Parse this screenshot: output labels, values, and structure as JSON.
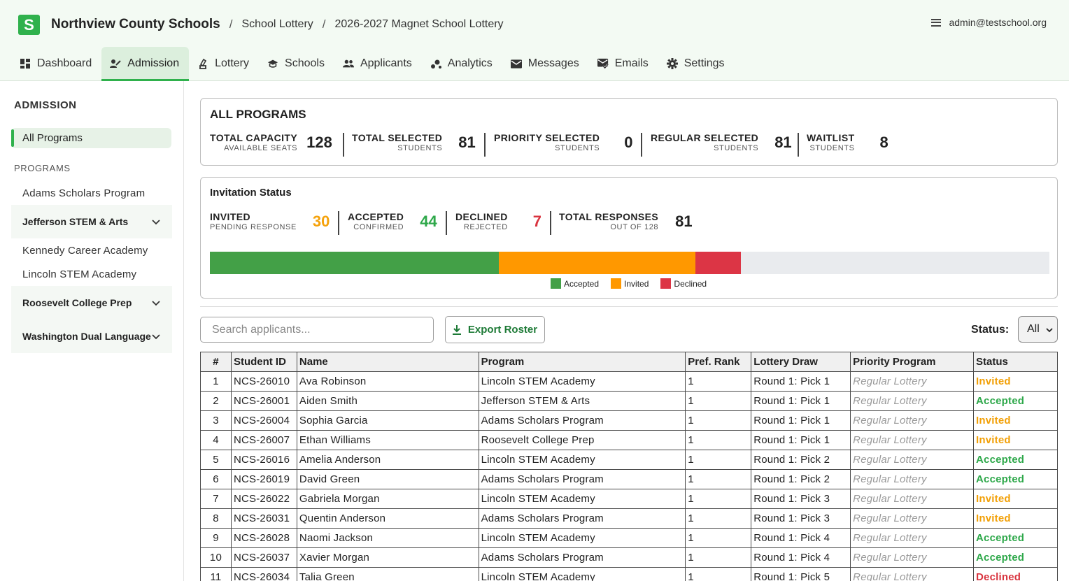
{
  "app": {
    "logo_letter": "S",
    "org_name": "Northview County Schools",
    "breadcrumbs": [
      "School Lottery",
      "2026-2027 Magnet School Lottery"
    ],
    "user_email": "admin@testschool.org",
    "accent_color": "#2fb14c"
  },
  "nav": {
    "tabs": [
      {
        "label": "Dashboard",
        "icon": "dashboard-icon"
      },
      {
        "label": "Admission",
        "icon": "admission-icon",
        "active": true
      },
      {
        "label": "Lottery",
        "icon": "lottery-icon"
      },
      {
        "label": "Schools",
        "icon": "school-icon"
      },
      {
        "label": "Applicants",
        "icon": "people-icon"
      },
      {
        "label": "Analytics",
        "icon": "analytics-icon"
      },
      {
        "label": "Messages",
        "icon": "mail-icon"
      },
      {
        "label": "Emails",
        "icon": "mark-email-icon"
      },
      {
        "label": "Settings",
        "icon": "gear-icon"
      }
    ]
  },
  "sidebar": {
    "title": "ADMISSION",
    "all_programs": "All Programs",
    "programs_heading": "PROGRAMS",
    "items": [
      "Adams Scholars Program",
      "Jefferson STEM & Arts",
      "Kennedy Career Academy",
      "Lincoln STEM Academy",
      "Roosevelt College Prep",
      "Washington Dual Language"
    ]
  },
  "summary": {
    "title": "ALL PROGRAMS",
    "stats": [
      {
        "label": "TOTAL CAPACITY",
        "sub": "AVAILABLE SEATS",
        "value": "128"
      },
      {
        "label": "TOTAL SELECTED",
        "sub": "STUDENTS",
        "value": "81"
      },
      {
        "label": "PRIORITY SELECTED",
        "sub": "STUDENTS",
        "value": "0"
      },
      {
        "label": "REGULAR SELECTED",
        "sub": "STUDENTS",
        "value": "81"
      },
      {
        "label": "WAITLIST",
        "sub": "STUDENTS",
        "value": "8"
      }
    ]
  },
  "invitation": {
    "title": "Invitation Status",
    "stats": [
      {
        "label": "INVITED",
        "sub": "PENDING RESPONSE",
        "value": "30",
        "color": "#f5a20b"
      },
      {
        "label": "ACCEPTED",
        "sub": "CONFIRMED",
        "value": "44",
        "color": "#2ea84a"
      },
      {
        "label": "DECLINED",
        "sub": "REJECTED",
        "value": "7",
        "color": "#d9343f"
      },
      {
        "label": "TOTAL RESPONSES",
        "sub": "OUT OF 128",
        "value": "81",
        "color": "#222222"
      }
    ],
    "progress": {
      "total": 128,
      "segments": [
        {
          "name": "Accepted",
          "value": 44,
          "color": "#43a047"
        },
        {
          "name": "Invited",
          "value": 30,
          "color": "#ff9800"
        },
        {
          "name": "Declined",
          "value": 7,
          "color": "#dc3545"
        }
      ]
    },
    "legend": [
      "Accepted",
      "Invited",
      "Declined"
    ]
  },
  "toolbar": {
    "search_placeholder": "Search applicants...",
    "export_label": "Export Roster",
    "status_label": "Status:",
    "status_value": "All"
  },
  "table": {
    "headers": [
      "#",
      "Student ID",
      "Name",
      "Program",
      "Pref. Rank",
      "Lottery Draw",
      "Priority Program",
      "Status"
    ],
    "rows": [
      [
        "1",
        "NCS-26010",
        "Ava Robinson",
        "Lincoln STEM Academy",
        "1",
        "Round 1: Pick 1",
        "Regular Lottery",
        "Invited"
      ],
      [
        "2",
        "NCS-26001",
        "Aiden Smith",
        "Jefferson STEM & Arts",
        "1",
        "Round 1: Pick 1",
        "Regular Lottery",
        "Accepted"
      ],
      [
        "3",
        "NCS-26004",
        "Sophia Garcia",
        "Adams Scholars Program",
        "1",
        "Round 1: Pick 1",
        "Regular Lottery",
        "Invited"
      ],
      [
        "4",
        "NCS-26007",
        "Ethan Williams",
        "Roosevelt College Prep",
        "1",
        "Round 1: Pick 1",
        "Regular Lottery",
        "Invited"
      ],
      [
        "5",
        "NCS-26016",
        "Amelia Anderson",
        "Lincoln STEM Academy",
        "1",
        "Round 1: Pick 2",
        "Regular Lottery",
        "Accepted"
      ],
      [
        "6",
        "NCS-26019",
        "David Green",
        "Adams Scholars Program",
        "1",
        "Round 1: Pick 2",
        "Regular Lottery",
        "Accepted"
      ],
      [
        "7",
        "NCS-26022",
        "Gabriela Morgan",
        "Lincoln STEM Academy",
        "1",
        "Round 1: Pick 3",
        "Regular Lottery",
        "Invited"
      ],
      [
        "8",
        "NCS-26031",
        "Quentin Anderson",
        "Adams Scholars Program",
        "1",
        "Round 1: Pick 3",
        "Regular Lottery",
        "Invited"
      ],
      [
        "9",
        "NCS-26028",
        "Naomi Jackson",
        "Lincoln STEM Academy",
        "1",
        "Round 1: Pick 4",
        "Regular Lottery",
        "Accepted"
      ],
      [
        "10",
        "NCS-26037",
        "Xavier Morgan",
        "Adams Scholars Program",
        "1",
        "Round 1: Pick 4",
        "Regular Lottery",
        "Accepted"
      ],
      [
        "11",
        "NCS-26034",
        "Talia Green",
        "Lincoln STEM Academy",
        "1",
        "Round 1: Pick 5",
        "Regular Lottery",
        "Declined"
      ]
    ]
  }
}
